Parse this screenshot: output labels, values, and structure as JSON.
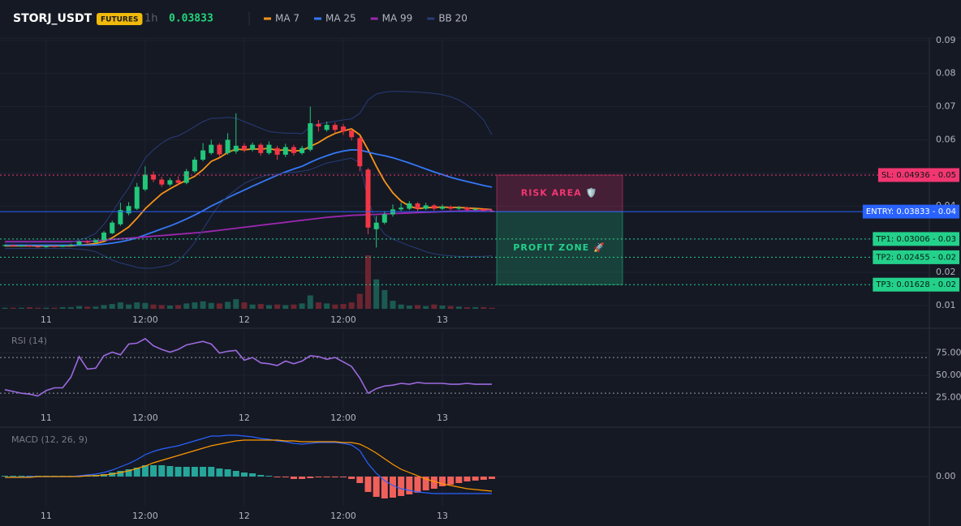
{
  "header": {
    "symbol": "STORJ_USDT",
    "badge": "FUTURES",
    "interval": "1h",
    "price": "0.03833"
  },
  "chart_data": [
    {
      "type": "candlestick",
      "categories": [
        null,
        null,
        null,
        null,
        null,
        "11",
        null,
        null,
        null,
        null,
        null,
        null,
        null,
        null,
        null,
        null,
        null,
        "12:00",
        null,
        null,
        null,
        null,
        null,
        null,
        null,
        null,
        null,
        null,
        null,
        "12",
        null,
        null,
        null,
        null,
        null,
        null,
        null,
        null,
        null,
        null,
        null,
        "12:00",
        null,
        null,
        null,
        null,
        null,
        null,
        null,
        null,
        null,
        null,
        null,
        "13",
        null,
        null,
        null,
        null,
        null,
        null
      ],
      "open": [
        0.028,
        0.0282,
        0.0279,
        0.0281,
        0.0278,
        0.0276,
        0.0279,
        0.0277,
        0.0281,
        0.0283,
        0.0293,
        0.029,
        0.0297,
        0.0318,
        0.0345,
        0.0378,
        0.0392,
        0.045,
        0.0495,
        0.048,
        0.0465,
        0.0478,
        0.047,
        0.0505,
        0.054,
        0.056,
        0.0585,
        0.056,
        0.0565,
        0.0582,
        0.057,
        0.0585,
        0.056,
        0.0575,
        0.0555,
        0.0578,
        0.056,
        0.057,
        0.0648,
        0.063,
        0.0645,
        0.064,
        0.0628,
        0.0605,
        0.051,
        0.033,
        0.035,
        0.0375,
        0.039,
        0.0392,
        0.0408,
        0.0392,
        0.0402,
        0.0392,
        0.0398,
        0.0392,
        0.0396,
        0.0389,
        0.0391,
        0.0386
      ],
      "high": [
        0.0284,
        0.0283,
        0.0283,
        0.0282,
        0.028,
        0.0281,
        0.0281,
        0.0283,
        0.0286,
        0.0296,
        0.0297,
        0.03,
        0.0325,
        0.0356,
        0.041,
        0.0412,
        0.047,
        0.052,
        0.0505,
        0.0488,
        0.0485,
        0.049,
        0.0512,
        0.0548,
        0.059,
        0.06,
        0.059,
        0.062,
        0.068,
        0.059,
        0.0592,
        0.059,
        0.0595,
        0.0582,
        0.0588,
        0.0585,
        0.0582,
        0.07,
        0.066,
        0.0655,
        0.0652,
        0.0648,
        0.0632,
        0.061,
        0.0515,
        0.037,
        0.0385,
        0.0405,
        0.041,
        0.0415,
        0.0412,
        0.041,
        0.0406,
        0.0405,
        0.0402,
        0.04,
        0.0398,
        0.0395,
        0.0394,
        0.0389
      ],
      "low": [
        0.0278,
        0.0277,
        0.0277,
        0.0276,
        0.0274,
        0.0274,
        0.0275,
        0.0276,
        0.0279,
        0.0281,
        0.0287,
        0.0288,
        0.0295,
        0.0315,
        0.034,
        0.0372,
        0.0388,
        0.0445,
        0.0472,
        0.0458,
        0.046,
        0.0462,
        0.0466,
        0.05,
        0.0535,
        0.0555,
        0.0548,
        0.0555,
        0.0558,
        0.0562,
        0.0565,
        0.0552,
        0.0555,
        0.054,
        0.0548,
        0.0552,
        0.0555,
        0.0565,
        0.0625,
        0.0625,
        0.0622,
        0.0615,
        0.0598,
        0.0505,
        0.0315,
        0.0275,
        0.0345,
        0.0368,
        0.0385,
        0.0388,
        0.0385,
        0.0388,
        0.0386,
        0.0388,
        0.0387,
        0.0388,
        0.0385,
        0.0386,
        0.0383,
        0.0381
      ],
      "close": [
        0.0282,
        0.0279,
        0.0281,
        0.0278,
        0.0276,
        0.0279,
        0.0277,
        0.0281,
        0.0283,
        0.0293,
        0.029,
        0.0297,
        0.032,
        0.035,
        0.0388,
        0.04,
        0.0458,
        0.0495,
        0.048,
        0.0465,
        0.0478,
        0.047,
        0.0505,
        0.054,
        0.0568,
        0.0585,
        0.0556,
        0.06,
        0.0582,
        0.057,
        0.0585,
        0.056,
        0.0585,
        0.0555,
        0.0578,
        0.056,
        0.0575,
        0.065,
        0.064,
        0.0645,
        0.063,
        0.0625,
        0.0608,
        0.052,
        0.0335,
        0.035,
        0.0375,
        0.039,
        0.0395,
        0.0408,
        0.0392,
        0.0402,
        0.0392,
        0.0398,
        0.0392,
        0.0396,
        0.0389,
        0.0391,
        0.0386,
        0.0383
      ],
      "volume": [
        2,
        2,
        2,
        3,
        2,
        2,
        2,
        3,
        3,
        5,
        4,
        4,
        7,
        9,
        12,
        8,
        12,
        11,
        8,
        7,
        6,
        7,
        10,
        12,
        14,
        11,
        10,
        13,
        18,
        12,
        8,
        9,
        7,
        8,
        7,
        8,
        10,
        25,
        12,
        10,
        8,
        9,
        12,
        28,
        100,
        55,
        35,
        15,
        8,
        6,
        7,
        5,
        8,
        6,
        5,
        4,
        3,
        3,
        3,
        2
      ],
      "up_color": "#22c77a",
      "down_color": "#f23645",
      "series": [
        {
          "name": "MA 7",
          "color": "#f7931a",
          "values": [
            0.028,
            0.028,
            0.028,
            0.028,
            0.028,
            0.028,
            0.028,
            0.028,
            0.028,
            0.0282,
            0.0284,
            0.0287,
            0.0293,
            0.0304,
            0.032,
            0.0337,
            0.0363,
            0.0392,
            0.0415,
            0.0437,
            0.0452,
            0.0466,
            0.0478,
            0.049,
            0.051,
            0.0535,
            0.0546,
            0.0562,
            0.0572,
            0.057,
            0.0572,
            0.0572,
            0.0574,
            0.0568,
            0.057,
            0.0566,
            0.0568,
            0.058,
            0.0592,
            0.0607,
            0.0619,
            0.0627,
            0.0633,
            0.0615,
            0.057,
            0.052,
            0.0475,
            0.044,
            0.0415,
            0.04,
            0.0392,
            0.0395,
            0.0396,
            0.0397,
            0.0396,
            0.0396,
            0.0394,
            0.0393,
            0.0391,
            0.0389
          ]
        },
        {
          "name": "MA 25",
          "color": "#3478f6",
          "values": [
            0.0282,
            0.0282,
            0.0282,
            0.0282,
            0.0282,
            0.0282,
            0.0282,
            0.0282,
            0.0282,
            0.0282,
            0.0282,
            0.0283,
            0.0285,
            0.0288,
            0.0292,
            0.0297,
            0.0304,
            0.0313,
            0.0322,
            0.0331,
            0.034,
            0.035,
            0.0361,
            0.0373,
            0.0386,
            0.04,
            0.0412,
            0.0425,
            0.0437,
            0.0448,
            0.046,
            0.0471,
            0.0482,
            0.0493,
            0.0503,
            0.0512,
            0.052,
            0.0532,
            0.0543,
            0.0552,
            0.056,
            0.0566,
            0.057,
            0.0569,
            0.0563,
            0.0557,
            0.0552,
            0.0546,
            0.0538,
            0.053,
            0.0521,
            0.0512,
            0.0503,
            0.0495,
            0.0487,
            0.048,
            0.0474,
            0.0468,
            0.0462,
            0.0457
          ]
        },
        {
          "name": "MA 99",
          "color": "#9c27b0",
          "values": [
            0.0293,
            0.0293,
            0.0293,
            0.0293,
            0.0293,
            0.0293,
            0.0293,
            0.0293,
            0.0293,
            0.0293,
            0.0293,
            0.0295,
            0.0297,
            0.0299,
            0.0301,
            0.0303,
            0.0305,
            0.0307,
            0.0309,
            0.0311,
            0.0313,
            0.0315,
            0.0317,
            0.0319,
            0.0321,
            0.0324,
            0.0327,
            0.033,
            0.0333,
            0.0336,
            0.0339,
            0.0342,
            0.0345,
            0.0348,
            0.0351,
            0.0354,
            0.0357,
            0.036,
            0.0363,
            0.0366,
            0.0368,
            0.037,
            0.0372,
            0.0373,
            0.0374,
            0.0375,
            0.0376,
            0.0377,
            0.0378,
            0.0379,
            0.038,
            0.0381,
            0.0382,
            0.0383,
            0.0384,
            0.0385,
            0.0386,
            0.0386,
            0.0387,
            0.0388
          ]
        },
        {
          "name": "BB 20",
          "color": "#283c78",
          "values": [
            0.029,
            0.029,
            0.029,
            0.029,
            0.029,
            0.029,
            0.029,
            0.029,
            0.029,
            0.0298,
            0.0305,
            0.0318,
            0.0345,
            0.038,
            0.042,
            0.0455,
            0.05,
            0.0545,
            0.057,
            0.059,
            0.0605,
            0.0612,
            0.0625,
            0.064,
            0.0655,
            0.0665,
            0.0665,
            0.0668,
            0.0665,
            0.0655,
            0.0645,
            0.0635,
            0.0625,
            0.0622,
            0.062,
            0.062,
            0.0618,
            0.064,
            0.0648,
            0.0652,
            0.0656,
            0.066,
            0.0663,
            0.068,
            0.072,
            0.0738,
            0.0744,
            0.0746,
            0.0746,
            0.0745,
            0.0744,
            0.0742,
            0.074,
            0.0736,
            0.073,
            0.072,
            0.0705,
            0.0685,
            0.066,
            0.0615
          ],
          "lower": [
            0.0272,
            0.0272,
            0.0272,
            0.0272,
            0.0272,
            0.0272,
            0.0272,
            0.0272,
            0.0272,
            0.027,
            0.0268,
            0.0262,
            0.025,
            0.0237,
            0.0228,
            0.0222,
            0.0215,
            0.0212,
            0.0213,
            0.0217,
            0.0222,
            0.0235,
            0.026,
            0.029,
            0.033,
            0.037,
            0.0405,
            0.043,
            0.045,
            0.0468,
            0.048,
            0.0488,
            0.0495,
            0.0496,
            0.05,
            0.0502,
            0.0505,
            0.051,
            0.052,
            0.053,
            0.0535,
            0.054,
            0.0545,
            0.053,
            0.042,
            0.035,
            0.0315,
            0.03,
            0.029,
            0.028,
            0.0272,
            0.0262,
            0.0256,
            0.0252,
            0.025,
            0.0248,
            0.0248,
            0.0248,
            0.0248,
            0.025
          ]
        }
      ],
      "ylim": [
        0.0085,
        0.0907
      ],
      "yticks": [
        0.01,
        0.02,
        0.03,
        0.04,
        0.05,
        0.06,
        0.07,
        0.08,
        0.09
      ],
      "grid": true,
      "levels": [
        {
          "label": "SL: 0.04936 - 0.05",
          "value": 0.04936,
          "color": "#f23672",
          "style": "dotted"
        },
        {
          "label": "ENTRY: 0.03833 - 0.04",
          "value": 0.03833,
          "color": "#2962ff",
          "style": "solid"
        },
        {
          "label": "TP1: 0.03006 - 0.03",
          "value": 0.03006,
          "color": "#23d18b",
          "style": "dotted"
        },
        {
          "label": "TP2: 0.02455 - 0.02",
          "value": 0.02455,
          "color": "#23d18b",
          "style": "dotted"
        },
        {
          "label": "TP3: 0.01628 - 0.02",
          "value": 0.01628,
          "color": "#23d18b",
          "style": "dotted"
        }
      ],
      "zones": [
        {
          "label": "RISK AREA 🛡️",
          "range": [
            0.03833,
            0.04936
          ],
          "color": "#f23672"
        },
        {
          "label": "PROFIT ZONE 🚀",
          "range": [
            0.01628,
            0.03833
          ],
          "color": "#23d18b"
        }
      ]
    },
    {
      "type": "line",
      "title": "RSI (14)",
      "categories": [
        null,
        null,
        null,
        null,
        null,
        "11",
        null,
        null,
        null,
        null,
        null,
        null,
        null,
        null,
        null,
        null,
        null,
        "12:00",
        null,
        null,
        null,
        null,
        null,
        null,
        null,
        null,
        null,
        null,
        null,
        "12",
        null,
        null,
        null,
        null,
        null,
        null,
        null,
        null,
        null,
        null,
        null,
        "12:00",
        null,
        null,
        null,
        null,
        null,
        null,
        null,
        null,
        null,
        null,
        null,
        "13",
        null,
        null,
        null,
        null,
        null,
        null
      ],
      "color": "#9c6ade",
      "values": [
        34,
        32,
        30,
        29,
        27,
        33,
        36,
        36,
        48,
        71,
        57,
        58,
        72,
        76,
        73,
        85,
        86,
        91,
        83,
        79,
        76,
        79,
        84,
        86,
        88,
        85,
        75,
        77,
        78,
        67,
        70,
        64,
        63,
        61,
        66,
        63,
        66,
        72,
        71,
        68,
        70,
        65,
        60,
        47,
        30,
        35,
        38,
        39,
        41,
        40,
        42,
        41,
        41,
        41,
        40,
        40,
        41,
        40,
        40,
        40
      ],
      "ylim": [
        12,
        100
      ],
      "yticks": [
        {
          "value": 25,
          "label": "25.00"
        },
        {
          "value": 50,
          "label": "50.00"
        },
        {
          "value": 75,
          "label": "75.00"
        }
      ],
      "levels": [
        70,
        30
      ]
    },
    {
      "type": "macd",
      "title": "MACD (12, 26, 9)",
      "categories": [
        null,
        null,
        null,
        null,
        null,
        "11",
        null,
        null,
        null,
        null,
        null,
        null,
        null,
        null,
        null,
        null,
        null,
        "12:00",
        null,
        null,
        null,
        null,
        null,
        null,
        null,
        null,
        null,
        null,
        null,
        "12",
        null,
        null,
        null,
        null,
        null,
        null,
        null,
        null,
        null,
        null,
        null,
        "12:00",
        null,
        null,
        null,
        null,
        null,
        null,
        null,
        null,
        null,
        null,
        null,
        "13",
        null,
        null,
        null,
        null,
        null,
        null
      ],
      "macd": [
        -0.0001,
        -0.0001,
        -0.0001,
        0,
        0,
        0,
        0,
        0,
        0,
        0.0001,
        0.0002,
        0.0003,
        0.0005,
        0.0008,
        0.0012,
        0.0016,
        0.0021,
        0.0027,
        0.0031,
        0.0034,
        0.0036,
        0.0038,
        0.0041,
        0.0044,
        0.0047,
        0.005,
        0.005,
        0.0051,
        0.0051,
        0.005,
        0.0049,
        0.0047,
        0.0046,
        0.0044,
        0.0043,
        0.0041,
        0.004,
        0.0041,
        0.0042,
        0.0042,
        0.0042,
        0.0041,
        0.0039,
        0.0032,
        0.0016,
        0.0004,
        -0.0005,
        -0.0011,
        -0.0015,
        -0.0017,
        -0.0019,
        -0.002,
        -0.0021,
        -0.0021,
        -0.0021,
        -0.0021,
        -0.0021,
        -0.0021,
        -0.0021,
        -0.0021
      ],
      "signal": [
        -0.0001,
        -0.0001,
        -0.0001,
        -0.0001,
        0,
        0,
        0,
        0,
        0,
        0,
        0.0001,
        0.0001,
        0.0002,
        0.0003,
        0.0005,
        0.0007,
        0.001,
        0.0013,
        0.0017,
        0.002,
        0.0023,
        0.0026,
        0.0029,
        0.0032,
        0.0035,
        0.0038,
        0.004,
        0.0042,
        0.0044,
        0.0045,
        0.0045,
        0.0045,
        0.0045,
        0.0045,
        0.0044,
        0.0044,
        0.0043,
        0.0043,
        0.0043,
        0.0043,
        0.0043,
        0.0042,
        0.0042,
        0.004,
        0.0035,
        0.0029,
        0.0022,
        0.0015,
        0.0009,
        0.0005,
        0.0001,
        -0.0003,
        -0.0006,
        -0.0009,
        -0.0011,
        -0.0013,
        -0.0015,
        -0.0016,
        -0.0017,
        -0.0018
      ],
      "histogram": [
        0.0001,
        0.0001,
        0.0001,
        0.0001,
        0.0001,
        0.0001,
        0.0001,
        0.0001,
        0.0001,
        0.0001,
        0.0001,
        0.0002,
        0.0003,
        0.0005,
        0.0007,
        0.0009,
        0.0011,
        0.0014,
        0.0014,
        0.0014,
        0.0013,
        0.0012,
        0.0012,
        0.0012,
        0.0012,
        0.0012,
        0.001,
        0.0009,
        0.0007,
        0.0005,
        0.0004,
        0.0002,
        0.0001,
        -0.0001,
        -0.0001,
        -0.0003,
        -0.0003,
        -0.0002,
        -0.0001,
        -0.0001,
        -0.0001,
        -0.0001,
        -0.0003,
        -0.0008,
        -0.0019,
        -0.0025,
        -0.0027,
        -0.0026,
        -0.0024,
        -0.0022,
        -0.002,
        -0.0017,
        -0.0015,
        -0.0012,
        -0.001,
        -0.0008,
        -0.0006,
        -0.0005,
        -0.0004,
        -0.0003
      ],
      "macd_color": "#2962ff",
      "signal_color": "#ff9800",
      "hist_up_color": "#26a69a",
      "hist_down_color": "#f0605a",
      "ylim": [
        -0.0037,
        0.0058
      ],
      "yticks": [
        {
          "value": 0,
          "label": "0.00"
        }
      ]
    }
  ]
}
